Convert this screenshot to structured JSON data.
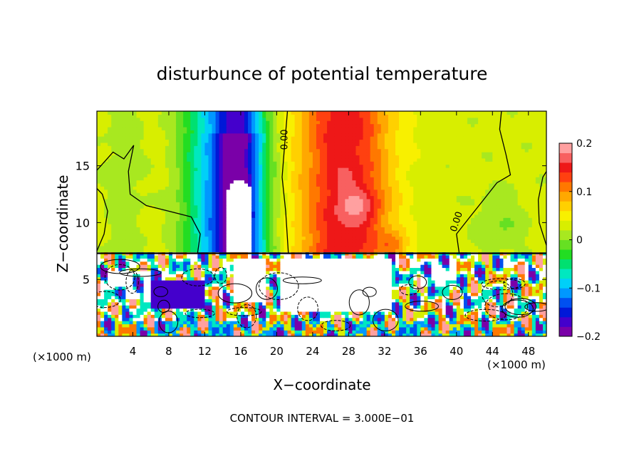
{
  "chart_data": {
    "type": "heatmap",
    "title": "disturbunce of potential temperature",
    "xlabel": "X−coordinate",
    "ylabel": "Z−coordinate",
    "x_unit": "(×1000 m)",
    "z_unit": "(×1000 m)",
    "footer": "CONTOUR INTERVAL = 3.000E−01",
    "xlim": [
      0,
      50
    ],
    "ylim": [
      0,
      19.8
    ],
    "x_ticks": [
      4,
      8,
      12,
      16,
      20,
      24,
      28,
      32,
      36,
      40,
      44,
      48
    ],
    "x_tick_labels": [
      "4",
      "8",
      "12",
      "16",
      "20",
      "24",
      "28",
      "32",
      "36",
      "40",
      "44",
      "48"
    ],
    "y_ticks": [
      5,
      10,
      15
    ],
    "y_tick_labels": [
      "5",
      "10",
      "15"
    ],
    "contour_labels": [
      {
        "text": "0.00",
        "x": 21.2,
        "z": 17.3,
        "rotate": -90
      },
      {
        "text": "0.00",
        "x": 40.3,
        "z": 10.0,
        "rotate": -72
      }
    ],
    "colorbar": {
      "min": -0.2,
      "max": 0.2,
      "tick_values": [
        0.2,
        0.1,
        0,
        -0.1,
        -0.2
      ],
      "tick_labels": [
        "0.2",
        "0.1",
        "0",
        "−0.1",
        "−0.2"
      ],
      "colors": [
        "#7a00a8",
        "#4400cc",
        "#0018d8",
        "#0050f0",
        "#0098ff",
        "#00d0f8",
        "#00e8c0",
        "#00e070",
        "#22dd22",
        "#66e022",
        "#a8e820",
        "#d8ee00",
        "#f8f000",
        "#ffd000",
        "#ffa800",
        "#ff7800",
        "#ff4010",
        "#ee1818",
        "#f86060",
        "#ffa0a0"
      ]
    },
    "upper_layer": {
      "z_range": [
        7.3,
        19.8
      ],
      "columns_x": [
        0,
        2,
        4,
        6,
        8,
        10,
        12,
        14,
        15,
        16,
        18,
        20,
        22,
        24,
        26,
        28,
        30,
        32,
        34,
        36,
        38,
        40,
        42,
        44,
        46,
        48,
        50
      ],
      "column_profile_ranges": {
        "x_0_8": [
          0.02,
          0.03
        ],
        "x_12_17": [
          -0.15,
          -0.05
        ],
        "x_14_16_core": [
          -0.2,
          -0.21
        ],
        "x_20": [
          0.0,
          0.06
        ],
        "x_24_32": [
          0.1,
          0.17
        ],
        "x_36_44": [
          0.02,
          0.05
        ],
        "x_44_50": [
          -0.02,
          0.02
        ]
      }
    },
    "white_plume": {
      "x_range": [
        14.3,
        17.4
      ],
      "z_top": 13.7
    },
    "inversion_z": 7.3,
    "lower_layer_note": "turbulent boundary layer with strong ±0.2 fluctuations"
  }
}
